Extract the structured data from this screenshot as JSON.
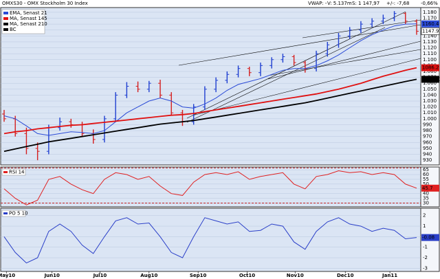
{
  "header": {
    "title": "OMXS30 - OMX Stockholm 30 Index",
    "stats": [
      "VWAP: -",
      "V: 5.137m",
      "S: 1 147,97",
      "+/-: -7,68",
      "-0,66%"
    ]
  },
  "chart_data": [
    {
      "type": "ohlc",
      "categories": [
        null,
        null,
        null,
        null,
        null,
        null,
        null,
        null,
        null,
        null,
        null,
        null,
        null,
        null,
        null,
        null,
        null,
        null,
        null,
        null,
        null,
        null,
        null,
        null,
        null,
        null,
        null,
        null,
        null,
        null,
        null,
        null,
        null,
        null,
        null,
        null,
        null,
        null
      ],
      "open": [
        1008,
        1000,
        975,
        950,
        945,
        985,
        995,
        990,
        975,
        965,
        1000,
        1040,
        1055,
        1050,
        1060,
        1040,
        1010,
        995,
        1020,
        1050,
        1065,
        1075,
        1085,
        1078,
        1090,
        1100,
        1105,
        1095,
        1085,
        1110,
        1125,
        1140,
        1150,
        1160,
        1165,
        1170,
        1178,
        1165
      ],
      "high": [
        1015,
        1005,
        985,
        960,
        990,
        1002,
        1000,
        995,
        982,
        1005,
        1045,
        1062,
        1063,
        1064,
        1066,
        1045,
        1015,
        1025,
        1055,
        1070,
        1080,
        1090,
        1088,
        1095,
        1104,
        1110,
        1108,
        1098,
        1115,
        1130,
        1145,
        1155,
        1165,
        1170,
        1176,
        1182,
        1180,
        1168
      ],
      "low": [
        995,
        970,
        940,
        930,
        940,
        980,
        985,
        970,
        958,
        960,
        995,
        1035,
        1045,
        1045,
        1035,
        1005,
        988,
        990,
        1015,
        1045,
        1060,
        1070,
        1072,
        1072,
        1085,
        1095,
        1090,
        1078,
        1080,
        1105,
        1120,
        1135,
        1145,
        1155,
        1160,
        1165,
        1160,
        1142
      ],
      "close": [
        1000,
        975,
        950,
        945,
        985,
        995,
        990,
        975,
        965,
        1000,
        1040,
        1055,
        1050,
        1060,
        1040,
        1010,
        995,
        1020,
        1050,
        1065,
        1075,
        1085,
        1078,
        1090,
        1100,
        1105,
        1095,
        1085,
        1110,
        1125,
        1140,
        1150,
        1160,
        1165,
        1170,
        1178,
        1165,
        1147.97
      ],
      "up_color": "#1f3fd0",
      "down_color": "#d41e1e",
      "series": [
        {
          "name": "EMA, Senast 21",
          "color": "#2a4ad6",
          "values": [
            1005,
            1000,
            988,
            975,
            972,
            975,
            978,
            977,
            975,
            980,
            995,
            1010,
            1020,
            1030,
            1035,
            1030,
            1020,
            1018,
            1025,
            1035,
            1048,
            1058,
            1063,
            1068,
            1075,
            1082,
            1085,
            1085,
            1090,
            1098,
            1108,
            1120,
            1132,
            1142,
            1150,
            1157,
            1160,
            1160.4
          ]
        },
        {
          "name": "MA, Senast 145",
          "color": "#e01010",
          "values": [
            975,
            978,
            980,
            983,
            985,
            987,
            989,
            990,
            992,
            994,
            996,
            998,
            1000,
            1002,
            1004,
            1006,
            1007,
            1009,
            1012,
            1015,
            1018,
            1021,
            1024,
            1027,
            1030,
            1033,
            1036,
            1039,
            1042,
            1046,
            1050,
            1055,
            1060,
            1066,
            1072,
            1077,
            1082,
            1086.2
          ]
        },
        {
          "name": "MA, Senast 210",
          "color": "#000000",
          "values": [
            945,
            949,
            953,
            957,
            961,
            964,
            967,
            970,
            973,
            976,
            979,
            982,
            985,
            988,
            991,
            993,
            995,
            997,
            1000,
            1003,
            1006,
            1009,
            1012,
            1015,
            1018,
            1021,
            1024,
            1027,
            1031,
            1035,
            1039,
            1043,
            1047,
            1051,
            1055,
            1059,
            1063,
            1066.71
          ]
        }
      ],
      "trendline_legend": {
        "name": "BC",
        "color": "#000000"
      },
      "ylim": [
        922,
        1188
      ],
      "yticks": [
        {
          "value": 1180,
          "label": "1.180"
        },
        {
          "value": 1170,
          "label": "1.170"
        },
        {
          "value": 1160,
          "label": "1.160"
        },
        {
          "value": 1150,
          "label": "1.150"
        },
        {
          "value": 1140,
          "label": "1.140"
        },
        {
          "value": 1130,
          "label": "1.130"
        },
        {
          "value": 1120,
          "label": "1.120"
        },
        {
          "value": 1110,
          "label": "1.110"
        },
        {
          "value": 1100,
          "label": "1.100"
        },
        {
          "value": 1090,
          "label": "1.090"
        },
        {
          "value": 1080,
          "label": "1.080"
        },
        {
          "value": 1070,
          "label": "1.070"
        },
        {
          "value": 1060,
          "label": "1.060"
        },
        {
          "value": 1050,
          "label": "1.050"
        },
        {
          "value": 1040,
          "label": "1.040"
        },
        {
          "value": 1030,
          "label": "1.030"
        },
        {
          "value": 1020,
          "label": "1.020"
        },
        {
          "value": 1010,
          "label": "1.010"
        },
        {
          "value": 1000,
          "label": "1.000"
        },
        990,
        980,
        970,
        960,
        950,
        940,
        930
      ]
    },
    {
      "type": "line",
      "series": [
        {
          "name": "RSI 14",
          "color": "#e02020",
          "values": [
            45,
            35,
            28,
            33,
            55,
            58,
            50,
            44,
            40,
            55,
            62,
            60,
            55,
            58,
            48,
            40,
            38,
            52,
            60,
            62,
            60,
            63,
            55,
            58,
            60,
            62,
            50,
            45,
            58,
            60,
            64,
            62,
            63,
            60,
            62,
            60,
            50,
            45.7
          ]
        }
      ],
      "levels": [
        67,
        30
      ],
      "level_color": "#c02020",
      "ylim": [
        26,
        68
      ],
      "yticks": [
        65,
        60,
        55,
        50,
        45,
        40,
        35,
        30
      ]
    },
    {
      "type": "line",
      "series": [
        {
          "name": "PO 5 10",
          "color": "#2a3fc8",
          "values": [
            0,
            -1.5,
            -2.5,
            -2,
            0.5,
            1.2,
            0.5,
            -0.8,
            -1.6,
            0,
            1.5,
            1.8,
            1.2,
            1.3,
            0,
            -1.5,
            -2,
            0,
            1.8,
            1.5,
            1.2,
            1.4,
            0.5,
            0.6,
            1.2,
            1.0,
            -0.5,
            -1.2,
            0.5,
            1.4,
            1.8,
            1.2,
            1.0,
            0.5,
            0.8,
            0.6,
            -0.2,
            -0.08
          ]
        }
      ],
      "ylim": [
        -3.3,
        2.7
      ],
      "yticks": [
        2,
        1,
        0,
        -1,
        -2,
        -3
      ],
      "xticks": [
        {
          "value": 0.2,
          "label": "May10"
        },
        {
          "value": 4.3,
          "label": "Jun10"
        },
        {
          "value": 8.6,
          "label": "Jul10"
        },
        {
          "value": 13.0,
          "label": "Aug10"
        },
        {
          "value": 17.4,
          "label": "Sep10"
        },
        {
          "value": 21.8,
          "label": "Oct10"
        },
        {
          "value": 26.1,
          "label": "Nov10"
        },
        {
          "value": 30.6,
          "label": "Dec10"
        },
        {
          "value": 34.6,
          "label": "Jan11"
        }
      ]
    }
  ]
}
